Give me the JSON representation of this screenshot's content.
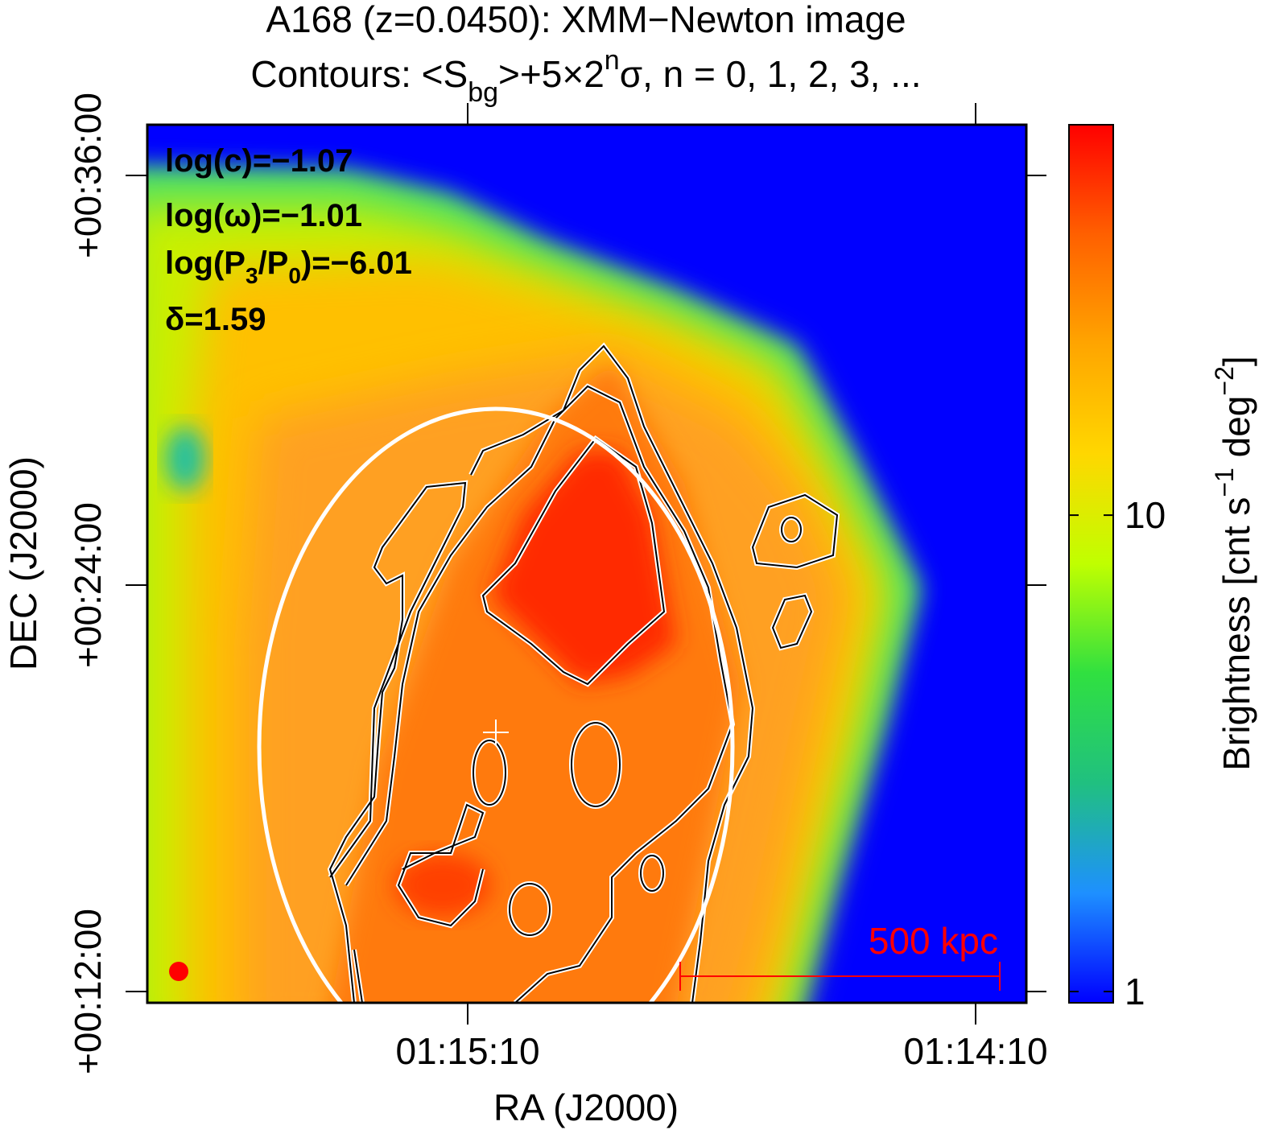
{
  "chart_data": {
    "type": "image",
    "title": "A168 (z=0.0450): XMM−Newton image",
    "subtitle": [
      "Contours: <S",
      "bg",
      ">+5×2",
      "n",
      "σ, n = 0, 1, 2, 3, ..."
    ],
    "stats": [
      [
        "log(c)=−1.07"
      ],
      [
        "log(ω)=−1.01"
      ],
      [
        "log(P",
        "3",
        "/P",
        "0",
        ")=−6.01"
      ],
      [
        "δ=1.59"
      ]
    ],
    "xlabel": "RA (J2000)",
    "ylabel": "DEC (J2000)",
    "xticks": [
      "01:15:10",
      "01:14:10"
    ],
    "yticks": [
      "+00:36:00",
      "+00:24:00",
      "+00:12:00"
    ],
    "scale_bar": "500 kpc",
    "colorbar": {
      "label": [
        "Brightness [cnt s",
        "−1",
        " deg",
        "−2",
        "]"
      ],
      "log": true,
      "clim": [
        1,
        66
      ],
      "ticks": [
        1,
        10
      ],
      "colors": [
        "#0000ff",
        "#1e90ff",
        "#20c080",
        "#30e040",
        "#c0ff00",
        "#ffd700",
        "#ffa500",
        "#ff6000",
        "#ff0000"
      ]
    }
  }
}
